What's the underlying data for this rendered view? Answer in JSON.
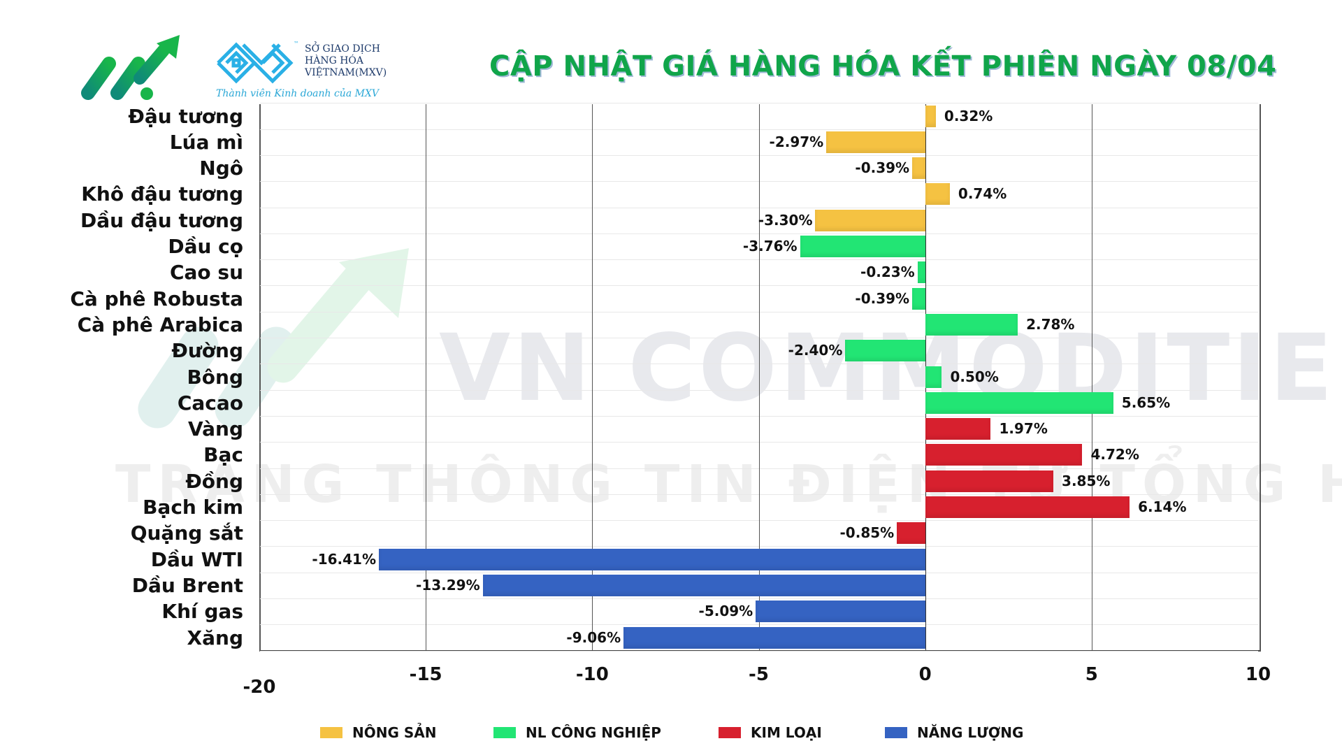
{
  "header": {
    "title": "CẬP NHẬT GIÁ HÀNG HÓA KẾT PHIÊN NGÀY 08/04",
    "mxv_logo_lines": [
      "SỞ GIAO DỊCH",
      "HÀNG HÓA",
      "VIỆTNAM(MXV)"
    ],
    "mxv_tm": "™",
    "mxv_subtitle": "Thành viên Kinh doanh của MXV"
  },
  "watermark": {
    "line1": "VN COMMODITIES",
    "line2": "TRANG THÔNG TIN ĐIỆN TỬ TỔNG HỢP"
  },
  "colors": {
    "nong_san": "#f5c242",
    "nl_cong_nghiep": "#22e574",
    "kim_loai": "#d7202e",
    "nang_luong": "#3563c2",
    "title": "#10a54a"
  },
  "legend": [
    {
      "label": "NÔNG SẢN",
      "color": "#f5c242"
    },
    {
      "label": "NL CÔNG NGHIỆP",
      "color": "#22e574"
    },
    {
      "label": "KIM LOẠI",
      "color": "#d7202e"
    },
    {
      "label": "NĂNG LƯỢNG",
      "color": "#3563c2"
    }
  ],
  "axis": {
    "ticks": [
      "-20",
      "-15",
      "-10",
      "-5",
      "0",
      "5",
      "10"
    ]
  },
  "chart_data": {
    "type": "bar",
    "orientation": "horizontal",
    "title": "CẬP NHẬT GIÁ HÀNG HÓA KẾT PHIÊN NGÀY 08/04",
    "xlabel": "",
    "ylabel": "",
    "xlim": [
      -20,
      10
    ],
    "xticks": [
      -20,
      -15,
      -10,
      -5,
      0,
      5,
      10
    ],
    "grid": true,
    "legend_position": "bottom",
    "categories": [
      "Đậu tương",
      "Lúa mì",
      "Ngô",
      "Khô đậu tương",
      "Dầu đậu tương",
      "Dầu cọ",
      "Cao su",
      "Cà phê Robusta",
      "Cà phê Arabica",
      "Đường",
      "Bông",
      "Cacao",
      "Vàng",
      "Bạc",
      "Đồng",
      "Bạch kim",
      "Quặng sắt",
      "Dầu WTI",
      "Dầu Brent",
      "Khí gas",
      "Xăng"
    ],
    "values": [
      0.32,
      -2.97,
      -0.39,
      0.74,
      -3.3,
      -3.76,
      -0.23,
      -0.39,
      2.78,
      -2.4,
      0.5,
      5.65,
      1.97,
      4.72,
      3.85,
      6.14,
      -0.85,
      -16.41,
      -13.29,
      -5.09,
      -9.06
    ],
    "labels": [
      "0.32%",
      "-2.97%",
      "-0.39%",
      "0.74%",
      "-3.30%",
      "-3.76%",
      "-0.23%",
      "-0.39%",
      "2.78%",
      "-2.40%",
      "0.50%",
      "5.65%",
      "1.97%",
      "4.72%",
      "3.85%",
      "6.14%",
      "-0.85%",
      "-16.41%",
      "-13.29%",
      "-5.09%",
      "-9.06%"
    ],
    "groups": [
      "NÔNG SẢN",
      "NÔNG SẢN",
      "NÔNG SẢN",
      "NÔNG SẢN",
      "NÔNG SẢN",
      "NL CÔNG NGHIỆP",
      "NL CÔNG NGHIỆP",
      "NL CÔNG NGHIỆP",
      "NL CÔNG NGHIỆP",
      "NL CÔNG NGHIỆP",
      "NL CÔNG NGHIỆP",
      "NL CÔNG NGHIỆP",
      "KIM LOẠI",
      "KIM LOẠI",
      "KIM LOẠI",
      "KIM LOẠI",
      "KIM LOẠI",
      "NĂNG LƯỢNG",
      "NĂNG LƯỢNG",
      "NĂNG LƯỢNG",
      "NĂNG LƯỢNG"
    ],
    "series": [
      {
        "name": "NÔNG SẢN",
        "color": "#f5c242",
        "categories": [
          "Đậu tương",
          "Lúa mì",
          "Ngô",
          "Khô đậu tương",
          "Dầu đậu tương"
        ],
        "values": [
          0.32,
          -2.97,
          -0.39,
          0.74,
          -3.3
        ]
      },
      {
        "name": "NL CÔNG NGHIỆP",
        "color": "#22e574",
        "categories": [
          "Dầu cọ",
          "Cao su",
          "Cà phê Robusta",
          "Cà phê Arabica",
          "Đường",
          "Bông",
          "Cacao"
        ],
        "values": [
          -3.76,
          -0.23,
          -0.39,
          2.78,
          -2.4,
          0.5,
          5.65
        ]
      },
      {
        "name": "KIM LOẠI",
        "color": "#d7202e",
        "categories": [
          "Vàng",
          "Bạc",
          "Đồng",
          "Bạch kim",
          "Quặng sắt"
        ],
        "values": [
          1.97,
          4.72,
          3.85,
          6.14,
          -0.85
        ]
      },
      {
        "name": "NĂNG LƯỢNG",
        "color": "#3563c2",
        "categories": [
          "Dầu WTI",
          "Dầu Brent",
          "Khí gas",
          "Xăng"
        ],
        "values": [
          -16.41,
          -13.29,
          -5.09,
          -9.06
        ]
      }
    ]
  }
}
